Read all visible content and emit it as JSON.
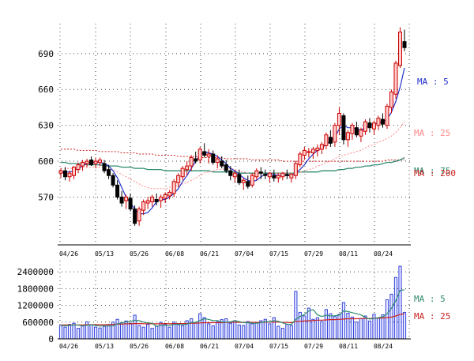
{
  "chart_data": {
    "type": "candlestick",
    "price_panel": {
      "y_ticks": [
        570,
        600,
        630,
        660,
        690
      ],
      "y_tick_labels": [
        "570",
        "600",
        "630",
        "660",
        "690"
      ],
      "ylim": [
        530,
        715
      ],
      "date_labels": [
        "04/26",
        "05/13",
        "05/26",
        "06/08",
        "06/21",
        "07/04",
        "07/15",
        "07/29",
        "08/11",
        "08/24"
      ],
      "legend": [
        {
          "label": "MA : 5",
          "color": "#2233cc"
        },
        {
          "label": "MA : 25",
          "color": "#ff8888"
        },
        {
          "label": "MA : 75",
          "color": "#2e8b6e"
        },
        {
          "label": "MA : 200",
          "color": "#cc2222"
        }
      ],
      "candles": [
        [
          590,
          594,
          586,
          592
        ],
        [
          592,
          595,
          584,
          587
        ],
        [
          587,
          592,
          583,
          590
        ],
        [
          588,
          596,
          585,
          595
        ],
        [
          593,
          599,
          590,
          597
        ],
        [
          596,
          601,
          592,
          599
        ],
        [
          598,
          602,
          595,
          600
        ],
        [
          601,
          604,
          596,
          597
        ],
        [
          598,
          603,
          594,
          600
        ],
        [
          599,
          603,
          596,
          601
        ],
        [
          598,
          601,
          590,
          592
        ],
        [
          593,
          597,
          585,
          588
        ],
        [
          588,
          590,
          578,
          580
        ],
        [
          580,
          584,
          568,
          570
        ],
        [
          570,
          575,
          562,
          565
        ],
        [
          567,
          572,
          560,
          570
        ],
        [
          569,
          573,
          558,
          560
        ],
        [
          560,
          563,
          546,
          548
        ],
        [
          550,
          562,
          546,
          560
        ],
        [
          559,
          568,
          555,
          566
        ],
        [
          565,
          570,
          560,
          567
        ],
        [
          566,
          572,
          562,
          570
        ],
        [
          568,
          573,
          563,
          566
        ],
        [
          567,
          572,
          561,
          570
        ],
        [
          569,
          574,
          565,
          572
        ],
        [
          571,
          576,
          568,
          574
        ],
        [
          573,
          585,
          570,
          583
        ],
        [
          582,
          590,
          578,
          588
        ],
        [
          587,
          596,
          584,
          594
        ],
        [
          593,
          600,
          588,
          596
        ],
        [
          596,
          605,
          592,
          603
        ],
        [
          602,
          608,
          598,
          600
        ],
        [
          601,
          612,
          598,
          610
        ],
        [
          608,
          615,
          603,
          605
        ],
        [
          604,
          610,
          598,
          606
        ],
        [
          606,
          609,
          597,
          599
        ],
        [
          599,
          605,
          594,
          602
        ],
        [
          600,
          604,
          594,
          596
        ],
        [
          597,
          601,
          590,
          592
        ],
        [
          592,
          596,
          584,
          588
        ],
        [
          587,
          592,
          582,
          590
        ],
        [
          589,
          593,
          580,
          582
        ],
        [
          582,
          586,
          576,
          584
        ],
        [
          583,
          588,
          577,
          579
        ],
        [
          580,
          590,
          578,
          588
        ],
        [
          587,
          594,
          584,
          592
        ],
        [
          591,
          595,
          585,
          590
        ],
        [
          589,
          593,
          585,
          588
        ],
        [
          587,
          591,
          582,
          590
        ],
        [
          588,
          593,
          583,
          586
        ],
        [
          586,
          590,
          582,
          588
        ],
        [
          587,
          591,
          584,
          590
        ],
        [
          589,
          593,
          585,
          588
        ],
        [
          586,
          590,
          582,
          589
        ],
        [
          588,
          600,
          585,
          598
        ],
        [
          597,
          608,
          595,
          606
        ],
        [
          605,
          612,
          601,
          609
        ],
        [
          608,
          611,
          603,
          608
        ],
        [
          607,
          612,
          602,
          610
        ],
        [
          609,
          614,
          604,
          611
        ],
        [
          610,
          616,
          606,
          614
        ],
        [
          613,
          624,
          610,
          622
        ],
        [
          620,
          626,
          612,
          615
        ],
        [
          616,
          632,
          612,
          630
        ],
        [
          630,
          645,
          622,
          640
        ],
        [
          638,
          640,
          614,
          618
        ],
        [
          618,
          626,
          612,
          624
        ],
        [
          623,
          632,
          618,
          630
        ],
        [
          628,
          633,
          620,
          622
        ],
        [
          621,
          628,
          616,
          626
        ],
        [
          625,
          635,
          622,
          633
        ],
        [
          632,
          636,
          624,
          628
        ],
        [
          627,
          634,
          622,
          632
        ],
        [
          630,
          638,
          626,
          636
        ],
        [
          635,
          640,
          628,
          631
        ],
        [
          630,
          648,
          627,
          646
        ],
        [
          645,
          660,
          640,
          658
        ],
        [
          656,
          684,
          652,
          682
        ],
        [
          680,
          712,
          678,
          708
        ],
        [
          700,
          710,
          692,
          695
        ]
      ],
      "ma5": [
        590,
        591,
        591,
        592,
        594,
        596,
        598,
        599,
        599,
        599,
        598,
        596,
        592,
        586,
        578,
        570,
        565,
        560,
        556,
        556,
        557,
        561,
        566,
        568,
        568,
        570,
        573,
        577,
        583,
        588,
        594,
        600,
        605,
        608,
        607,
        606,
        604,
        601,
        598,
        594,
        592,
        589,
        586,
        584,
        583,
        584,
        587,
        589,
        590,
        589,
        588,
        588,
        588,
        588,
        590,
        593,
        597,
        602,
        606,
        609,
        611,
        614,
        617,
        620,
        627,
        630,
        628,
        628,
        627,
        626,
        628,
        630,
        631,
        632,
        633,
        635,
        641,
        650,
        662,
        678
      ],
      "ma25": [
        594,
        594,
        594,
        594,
        594,
        595,
        595,
        595,
        595,
        595,
        595,
        594,
        593,
        591,
        589,
        587,
        585,
        583,
        581,
        579,
        578,
        577,
        577,
        577,
        577,
        578,
        579,
        580,
        581,
        582,
        584,
        586,
        588,
        590,
        591,
        592,
        593,
        593,
        594,
        594,
        593,
        592,
        591,
        590,
        589,
        589,
        589,
        589,
        589,
        590,
        590,
        590,
        590,
        590,
        590,
        591,
        592,
        593,
        594,
        596,
        597,
        599,
        600,
        602,
        604,
        605,
        606,
        607,
        608,
        609,
        611,
        613,
        614,
        616,
        617,
        619,
        621,
        624,
        628,
        633
      ],
      "ma75": [
        599,
        599,
        598,
        598,
        598,
        598,
        597,
        597,
        597,
        597,
        596,
        596,
        596,
        596,
        595,
        595,
        595,
        594,
        594,
        594,
        593,
        593,
        593,
        593,
        592,
        592,
        592,
        592,
        592,
        592,
        592,
        592,
        592,
        592,
        592,
        591,
        591,
        591,
        591,
        591,
        591,
        590,
        590,
        590,
        590,
        590,
        590,
        590,
        590,
        590,
        590,
        590,
        590,
        590,
        590,
        591,
        591,
        591,
        591,
        591,
        592,
        592,
        592,
        592,
        593,
        593,
        594,
        594,
        595,
        595,
        596,
        596,
        597,
        597,
        598,
        599,
        599,
        600,
        601,
        603
      ],
      "ma200": [
        610,
        610,
        610,
        610,
        609,
        609,
        609,
        609,
        609,
        608,
        608,
        608,
        608,
        608,
        607,
        607,
        607,
        607,
        606,
        606,
        606,
        606,
        605,
        605,
        605,
        605,
        605,
        604,
        604,
        604,
        604,
        604,
        603,
        603,
        603,
        603,
        603,
        603,
        602,
        602,
        602,
        602,
        602,
        602,
        601,
        601,
        601,
        601,
        601,
        601,
        601,
        600,
        600,
        600,
        600,
        600,
        600,
        600,
        600,
        600,
        600,
        600,
        600,
        600,
        600,
        600,
        600,
        600,
        600,
        600,
        600,
        600,
        600,
        600,
        600,
        601,
        601,
        601,
        601,
        601
      ]
    },
    "volume_panel": {
      "y_ticks": [
        0,
        600000,
        1200000,
        1800000,
        2400000
      ],
      "y_tick_labels": [
        "0",
        "600000",
        "1200000",
        "1800000",
        "2400000"
      ],
      "ylim": [
        0,
        2800000
      ],
      "date_labels": [
        "04/26",
        "05/13",
        "05/26",
        "06/08",
        "06/21",
        "07/04",
        "07/15",
        "07/29",
        "08/11",
        "08/24"
      ],
      "legend": [
        {
          "label": "MA : 5",
          "color": "#2e8b6e"
        },
        {
          "label": "MA : 25",
          "color": "#cc2222"
        }
      ],
      "volume": [
        480000,
        420000,
        520000,
        560000,
        380000,
        460000,
        610000,
        500000,
        420000,
        390000,
        450000,
        520000,
        600000,
        700000,
        580000,
        640000,
        560000,
        850000,
        480000,
        420000,
        520000,
        380000,
        460000,
        590000,
        520000,
        420000,
        600000,
        510000,
        470000,
        650000,
        720000,
        580000,
        900000,
        760000,
        540000,
        470000,
        610000,
        690000,
        720000,
        560000,
        650000,
        500000,
        480000,
        620000,
        540000,
        590000,
        650000,
        700000,
        540000,
        760000,
        450000,
        380000,
        520000,
        480000,
        1700000,
        950000,
        820000,
        1100000,
        700000,
        760000,
        620000,
        1050000,
        900000,
        800000,
        880000,
        1300000,
        920000,
        780000,
        600000,
        720000,
        820000,
        640000,
        880000,
        740000,
        860000,
        1400000,
        1600000,
        2200000,
        2600000,
        950000
      ],
      "vol_ma5": [
        480000,
        470000,
        480000,
        500000,
        490000,
        470000,
        490000,
        510000,
        480000,
        460000,
        470000,
        460000,
        470000,
        540000,
        570000,
        610000,
        620000,
        670000,
        650000,
        600000,
        570000,
        560000,
        450000,
        480000,
        490000,
        480000,
        520000,
        530000,
        510000,
        530000,
        590000,
        590000,
        660000,
        720000,
        700000,
        650000,
        660000,
        600000,
        600000,
        610000,
        650000,
        620000,
        580000,
        580000,
        560000,
        560000,
        580000,
        620000,
        610000,
        650000,
        630000,
        570000,
        530000,
        520000,
        700000,
        800000,
        870000,
        1000000,
        1050000,
        860000,
        800000,
        850000,
        820000,
        830000,
        850000,
        1000000,
        980000,
        940000,
        900000,
        860000,
        770000,
        710000,
        730000,
        760000,
        790000,
        900000,
        1100000,
        1360000,
        1740000,
        1760000
      ],
      "vol_ma25": [
        500000,
        500000,
        500000,
        500000,
        500000,
        500000,
        510000,
        510000,
        510000,
        510000,
        510000,
        510000,
        520000,
        530000,
        530000,
        540000,
        540000,
        550000,
        550000,
        540000,
        540000,
        540000,
        540000,
        540000,
        550000,
        540000,
        550000,
        550000,
        550000,
        550000,
        560000,
        560000,
        570000,
        580000,
        580000,
        580000,
        580000,
        580000,
        590000,
        590000,
        600000,
        590000,
        590000,
        590000,
        590000,
        590000,
        590000,
        600000,
        600000,
        600000,
        600000,
        590000,
        590000,
        580000,
        620000,
        630000,
        640000,
        650000,
        660000,
        670000,
        670000,
        680000,
        690000,
        690000,
        700000,
        710000,
        720000,
        720000,
        720000,
        730000,
        730000,
        730000,
        740000,
        740000,
        750000,
        760000,
        780000,
        820000,
        880000,
        900000
      ]
    }
  }
}
